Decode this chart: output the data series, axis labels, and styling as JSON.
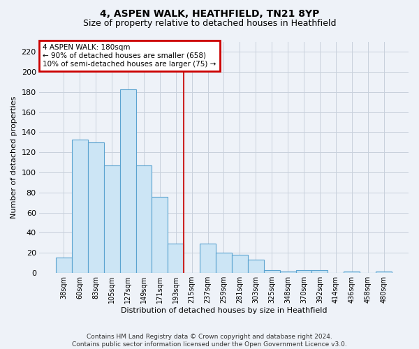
{
  "title": "4, ASPEN WALK, HEATHFIELD, TN21 8YP",
  "subtitle": "Size of property relative to detached houses in Heathfield",
  "xlabel": "Distribution of detached houses by size in Heathfield",
  "ylabel": "Number of detached properties",
  "bar_labels": [
    "38sqm",
    "60sqm",
    "83sqm",
    "105sqm",
    "127sqm",
    "149sqm",
    "171sqm",
    "193sqm",
    "215sqm",
    "237sqm",
    "259sqm",
    "281sqm",
    "303sqm",
    "325sqm",
    "348sqm",
    "370sqm",
    "392sqm",
    "414sqm",
    "436sqm",
    "458sqm",
    "480sqm"
  ],
  "bar_values": [
    15,
    133,
    130,
    107,
    183,
    107,
    76,
    29,
    0,
    29,
    20,
    18,
    13,
    3,
    1,
    3,
    3,
    0,
    1,
    0,
    1
  ],
  "bar_color": "#cce5f5",
  "bar_edge_color": "#5ba3d0",
  "annotation_text": "4 ASPEN WALK: 180sqm\n← 90% of detached houses are smaller (658)\n10% of semi-detached houses are larger (75) →",
  "annotation_box_color": "#ffffff",
  "annotation_box_edge": "#cc0000",
  "redline_x": 7.5,
  "ylim": [
    0,
    230
  ],
  "yticks": [
    0,
    20,
    40,
    60,
    80,
    100,
    120,
    140,
    160,
    180,
    200,
    220
  ],
  "footer": "Contains HM Land Registry data © Crown copyright and database right 2024.\nContains public sector information licensed under the Open Government Licence v3.0.",
  "background_color": "#eef2f8",
  "grid_color": "#c8d0dc",
  "title_fontsize": 10,
  "subtitle_fontsize": 9
}
